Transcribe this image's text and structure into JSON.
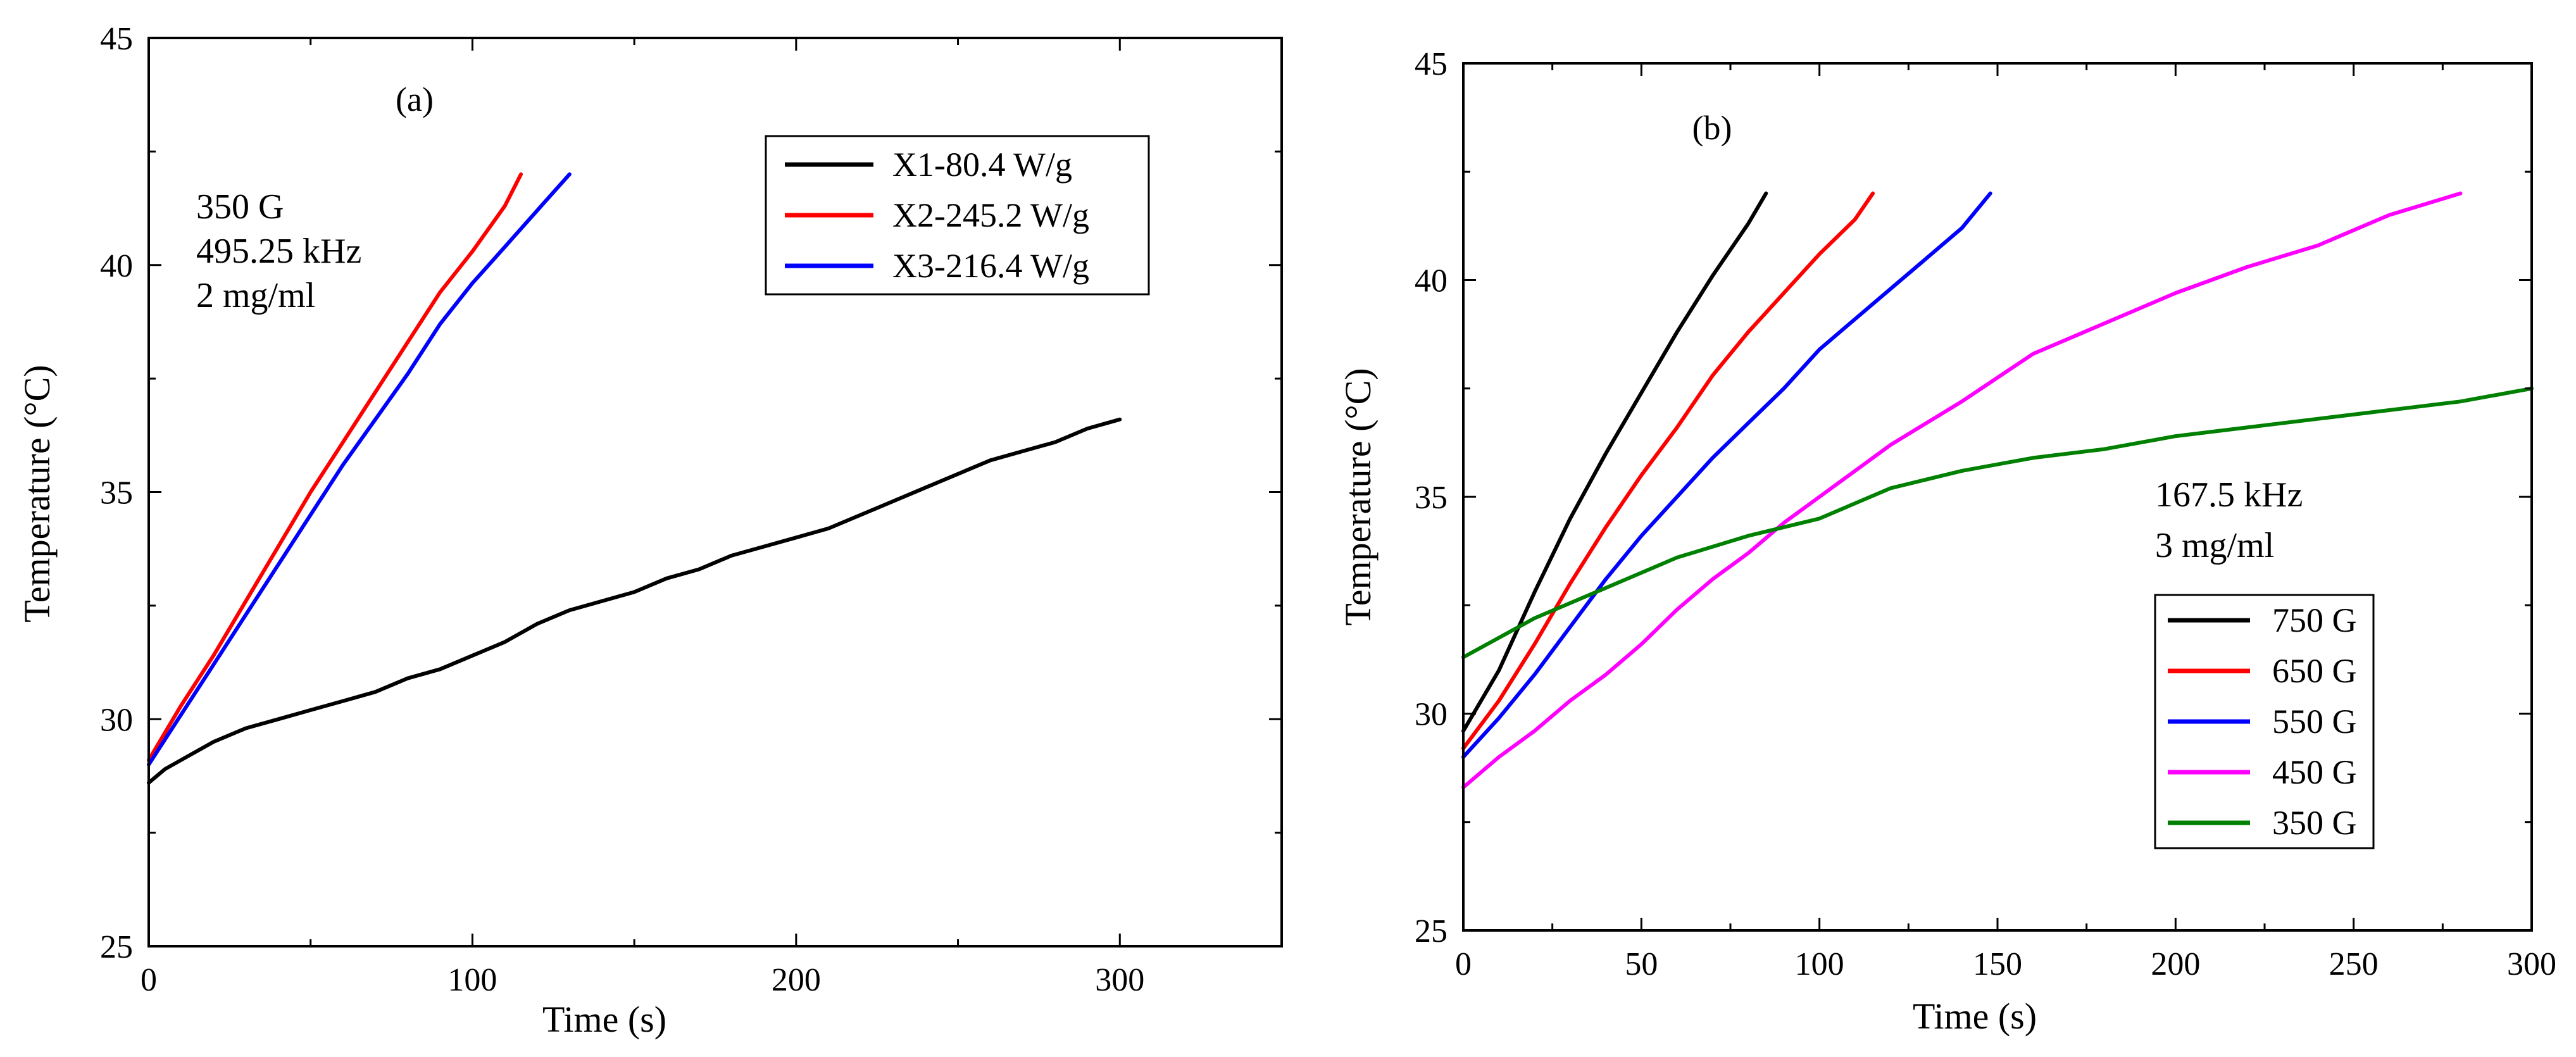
{
  "chart_data": [
    {
      "id": "a",
      "type": "line",
      "panel_label": "(a)",
      "xlabel": "Time (s)",
      "ylabel": "Temperature (°C)",
      "xlim": [
        0,
        350
      ],
      "ylim": [
        25,
        45
      ],
      "xticks": [
        0,
        100,
        200,
        300
      ],
      "yticks": [
        25,
        30,
        35,
        40,
        45
      ],
      "grid": false,
      "legend_position": "top-right",
      "annotations": [
        "350 G",
        "495.25 kHz",
        "2 mg/ml"
      ],
      "series": [
        {
          "name": "X1-80.4 W/g",
          "color": "#000000",
          "x": [
            0,
            5,
            10,
            20,
            30,
            40,
            50,
            60,
            70,
            80,
            90,
            100,
            110,
            120,
            130,
            140,
            150,
            160,
            170,
            180,
            190,
            200,
            210,
            220,
            230,
            240,
            250,
            260,
            270,
            280,
            290,
            300
          ],
          "y": [
            28.6,
            28.9,
            29.1,
            29.5,
            29.8,
            30.0,
            30.2,
            30.4,
            30.6,
            30.9,
            31.1,
            31.4,
            31.7,
            32.1,
            32.4,
            32.6,
            32.8,
            33.1,
            33.3,
            33.6,
            33.8,
            34.0,
            34.2,
            34.5,
            34.8,
            35.1,
            35.4,
            35.7,
            35.9,
            36.1,
            36.4,
            36.6
          ]
        },
        {
          "name": "X2-245.2 W/g",
          "color": "#ff0000",
          "x": [
            0,
            10,
            20,
            30,
            40,
            50,
            60,
            70,
            80,
            90,
            100,
            105,
            110,
            115
          ],
          "y": [
            29.1,
            30.3,
            31.4,
            32.6,
            33.8,
            35.0,
            36.1,
            37.2,
            38.3,
            39.4,
            40.3,
            40.8,
            41.3,
            42.0
          ]
        },
        {
          "name": "X3-216.4 W/g",
          "color": "#0000ff",
          "x": [
            0,
            10,
            20,
            30,
            40,
            50,
            60,
            70,
            80,
            90,
            100,
            110,
            120,
            125,
            130
          ],
          "y": [
            29.0,
            30.1,
            31.2,
            32.3,
            33.4,
            34.5,
            35.6,
            36.6,
            37.6,
            38.7,
            39.6,
            40.4,
            41.2,
            41.6,
            42.0
          ]
        }
      ]
    },
    {
      "id": "b",
      "type": "line",
      "panel_label": "(b)",
      "xlabel": "Time (s)",
      "ylabel": "Temperature (°C)",
      "xlim": [
        0,
        300
      ],
      "ylim": [
        25,
        45
      ],
      "xticks": [
        0,
        50,
        100,
        150,
        200,
        250,
        300
      ],
      "yticks": [
        25,
        30,
        35,
        40,
        45
      ],
      "grid": false,
      "legend_position": "bottom-right",
      "annotations": [
        "167.5 kHz",
        "3 mg/ml"
      ],
      "series": [
        {
          "name": "750 G",
          "color": "#000000",
          "x": [
            0,
            10,
            20,
            30,
            40,
            50,
            60,
            70,
            80,
            85
          ],
          "y": [
            29.6,
            31.0,
            32.8,
            34.5,
            36.0,
            37.4,
            38.8,
            40.1,
            41.3,
            42.0
          ]
        },
        {
          "name": "650 G",
          "color": "#ff0000",
          "x": [
            0,
            10,
            20,
            30,
            40,
            50,
            60,
            70,
            80,
            90,
            100,
            110,
            115
          ],
          "y": [
            29.2,
            30.3,
            31.6,
            33.0,
            34.3,
            35.5,
            36.6,
            37.8,
            38.8,
            39.7,
            40.6,
            41.4,
            42.0
          ]
        },
        {
          "name": "550 G",
          "color": "#0000ff",
          "x": [
            0,
            10,
            20,
            30,
            40,
            50,
            60,
            70,
            80,
            90,
            100,
            110,
            120,
            130,
            140,
            148
          ],
          "y": [
            29.0,
            29.9,
            30.9,
            32.0,
            33.1,
            34.1,
            35.0,
            35.9,
            36.7,
            37.5,
            38.4,
            39.1,
            39.8,
            40.5,
            41.2,
            42.0
          ]
        },
        {
          "name": "450 G",
          "color": "#ff00ff",
          "x": [
            0,
            10,
            20,
            30,
            40,
            50,
            60,
            70,
            80,
            90,
            100,
            120,
            140,
            160,
            180,
            200,
            220,
            240,
            260,
            280
          ],
          "y": [
            28.3,
            29.0,
            29.6,
            30.3,
            30.9,
            31.6,
            32.4,
            33.1,
            33.7,
            34.4,
            35.0,
            36.2,
            37.2,
            38.3,
            39.0,
            39.7,
            40.3,
            40.8,
            41.5,
            42.0
          ]
        },
        {
          "name": "350 G",
          "color": "#008000",
          "x": [
            0,
            20,
            40,
            60,
            80,
            100,
            120,
            140,
            160,
            180,
            200,
            220,
            240,
            260,
            280,
            300
          ],
          "y": [
            31.3,
            32.2,
            32.9,
            33.6,
            34.1,
            34.5,
            35.2,
            35.6,
            35.9,
            36.1,
            36.4,
            36.6,
            36.8,
            37.0,
            37.2,
            37.5
          ]
        }
      ]
    }
  ]
}
